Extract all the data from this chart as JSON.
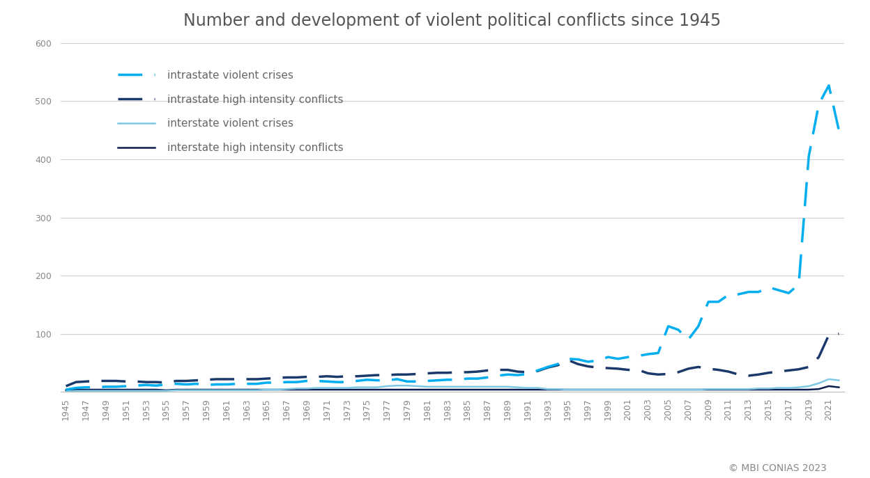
{
  "title": "Number and development of violent political conflicts since 1945",
  "copyright": "© MBI CONIAS 2023",
  "years": [
    1945,
    1946,
    1947,
    1948,
    1949,
    1950,
    1951,
    1952,
    1953,
    1954,
    1955,
    1956,
    1957,
    1958,
    1959,
    1960,
    1961,
    1962,
    1963,
    1964,
    1965,
    1966,
    1967,
    1968,
    1969,
    1970,
    1971,
    1972,
    1973,
    1974,
    1975,
    1976,
    1977,
    1978,
    1979,
    1980,
    1981,
    1982,
    1983,
    1984,
    1985,
    1986,
    1987,
    1988,
    1989,
    1990,
    1991,
    1992,
    1993,
    1994,
    1995,
    1996,
    1997,
    1998,
    1999,
    2000,
    2001,
    2002,
    2003,
    2004,
    2005,
    2006,
    2007,
    2008,
    2009,
    2010,
    2011,
    2012,
    2013,
    2014,
    2015,
    2016,
    2017,
    2018,
    2019,
    2020,
    2021,
    2022
  ],
  "intrastate_violent_crises": [
    4,
    7,
    8,
    8,
    9,
    9,
    10,
    11,
    12,
    11,
    13,
    14,
    13,
    14,
    12,
    13,
    13,
    14,
    14,
    14,
    16,
    16,
    17,
    17,
    19,
    19,
    18,
    17,
    17,
    19,
    21,
    20,
    20,
    22,
    18,
    18,
    19,
    20,
    21,
    21,
    23,
    23,
    25,
    28,
    30,
    29,
    31,
    37,
    43,
    48,
    57,
    56,
    52,
    54,
    60,
    57,
    60,
    62,
    65,
    67,
    113,
    107,
    90,
    113,
    155,
    155,
    167,
    168,
    172,
    172,
    180,
    175,
    170,
    185,
    405,
    495,
    527,
    450
  ],
  "intrastate_high_intensity": [
    10,
    17,
    18,
    19,
    19,
    19,
    18,
    18,
    17,
    17,
    16,
    19,
    19,
    20,
    21,
    22,
    22,
    22,
    22,
    22,
    23,
    24,
    25,
    25,
    26,
    26,
    27,
    26,
    27,
    27,
    28,
    29,
    29,
    30,
    30,
    31,
    32,
    33,
    33,
    34,
    34,
    35,
    37,
    38,
    38,
    35,
    34,
    36,
    42,
    46,
    55,
    48,
    44,
    42,
    41,
    40,
    38,
    38,
    32,
    30,
    31,
    34,
    40,
    43,
    40,
    38,
    35,
    30,
    28,
    30,
    33,
    35,
    37,
    39,
    43,
    60,
    98,
    100
  ],
  "interstate_violent_crises": [
    1,
    2,
    2,
    2,
    2,
    2,
    2,
    2,
    2,
    2,
    2,
    3,
    3,
    3,
    3,
    3,
    3,
    3,
    3,
    3,
    4,
    4,
    5,
    6,
    6,
    7,
    7,
    7,
    7,
    8,
    8,
    8,
    10,
    11,
    11,
    10,
    9,
    9,
    9,
    9,
    9,
    9,
    9,
    9,
    9,
    8,
    7,
    7,
    5,
    5,
    4,
    4,
    4,
    4,
    4,
    4,
    4,
    4,
    4,
    4,
    4,
    4,
    4,
    4,
    5,
    5,
    5,
    5,
    5,
    6,
    6,
    7,
    7,
    8,
    10,
    15,
    22,
    20
  ],
  "interstate_high_intensity": [
    3,
    4,
    4,
    4,
    4,
    4,
    4,
    4,
    4,
    4,
    3,
    4,
    4,
    4,
    4,
    4,
    4,
    4,
    4,
    4,
    4,
    4,
    4,
    4,
    4,
    4,
    4,
    4,
    4,
    4,
    4,
    4,
    4,
    4,
    4,
    4,
    4,
    4,
    4,
    4,
    4,
    4,
    4,
    4,
    4,
    4,
    4,
    4,
    4,
    4,
    4,
    4,
    4,
    4,
    4,
    4,
    4,
    4,
    4,
    4,
    4,
    4,
    4,
    4,
    4,
    4,
    4,
    4,
    4,
    4,
    4,
    4,
    4,
    4,
    4,
    5,
    10,
    8
  ],
  "color_intrastate_crises": "#00AEEF",
  "color_intrastate_high": "#1B3A6B",
  "color_interstate_crises": "#7EC8E3",
  "color_interstate_high": "#0A1D4E",
  "ylim_min": 0,
  "ylim_max": 600,
  "yticks": [
    0,
    100,
    200,
    300,
    400,
    500,
    600
  ],
  "background_color": "#FFFFFF",
  "grid_color": "#D0D0D0",
  "title_fontsize": 17,
  "tick_fontsize": 9,
  "legend_fontsize": 11,
  "legend_label_color": "#666666",
  "tick_color": "#888888"
}
